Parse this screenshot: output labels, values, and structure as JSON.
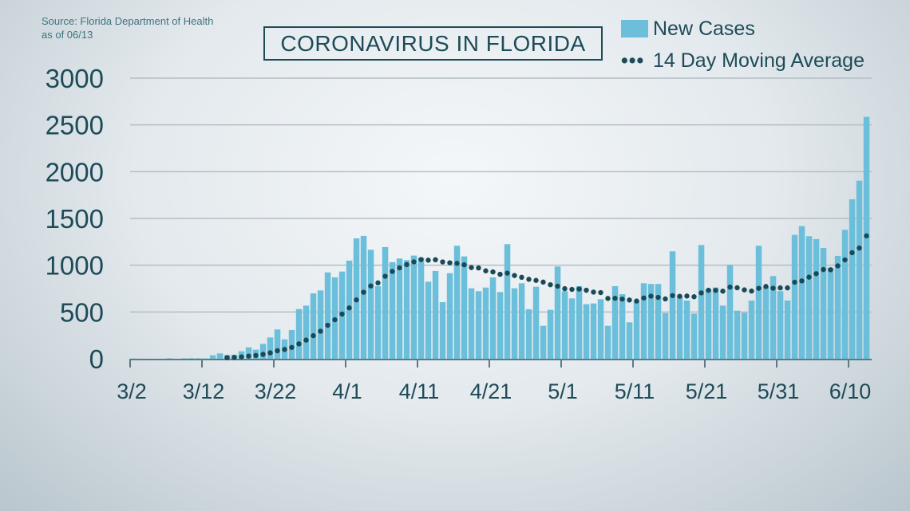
{
  "source": {
    "line1": "Source: Florida Department of Health",
    "line2": "as of 06/13"
  },
  "chart_data": {
    "type": "bar",
    "title": "CORONAVIRUS IN FLORIDA",
    "xlabel": "",
    "ylabel": "",
    "ylim": [
      0,
      3000
    ],
    "yticks": [
      0,
      500,
      1000,
      1500,
      2000,
      2500,
      3000
    ],
    "xtick_labels": [
      "3/2",
      "3/12",
      "3/22",
      "4/1",
      "4/11",
      "4/21",
      "5/1",
      "5/11",
      "5/21",
      "5/31",
      "6/10"
    ],
    "grid": true,
    "legend_placement": "top-right",
    "colors": {
      "bars": "#6bbfdb",
      "moving_average": "#1b4a57",
      "text": "#1e4b58"
    },
    "categories_start": "3/2",
    "categories_end": "6/12",
    "series": [
      {
        "name": "New Cases",
        "type": "bar",
        "values": [
          2,
          0,
          0,
          0,
          0,
          5,
          0,
          4,
          5,
          5,
          3,
          37,
          57,
          40,
          43,
          80,
          122,
          97,
          159,
          227,
          313,
          207,
          307,
          531,
          568,
          699,
          730,
          923,
          870,
          932,
          1049,
          1287,
          1313,
          1165,
          776,
          1194,
          1032,
          1071,
          1054,
          1103,
          1080,
          824,
          938,
          605,
          915,
          1208,
          1094,
          753,
          722,
          761,
          870,
          713,
          1225,
          753,
          807,
          529,
          770,
          352,
          523,
          986,
          722,
          645,
          776,
          583,
          591,
          636,
          352,
          776,
          690,
          389,
          619,
          807,
          799,
          799,
          489,
          1148,
          668,
          622,
          483,
          1216,
          745,
          762,
          568,
          1003,
          514,
          492,
          622,
          1208,
          767,
          884,
          722,
          622,
          1324,
          1418,
          1310,
          1279,
          1185,
          972,
          1100,
          1378,
          1705,
          1904,
          2586
        ]
      },
      {
        "name": "14 Day Moving Average",
        "type": "line-dotted",
        "window": 14
      }
    ]
  }
}
